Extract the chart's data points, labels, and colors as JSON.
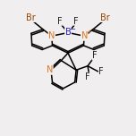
{
  "bg_color": "#f0eeee",
  "bond_color": "#000000",
  "N_color": "#e07820",
  "B_color": "#2222cc",
  "Br_color": "#994400",
  "F_color": "#222222",
  "line_width": 1.1,
  "figsize": [
    1.52,
    1.52
  ],
  "dpi": 100,
  "xlim": [
    0,
    10
  ],
  "ylim": [
    0,
    10
  ]
}
